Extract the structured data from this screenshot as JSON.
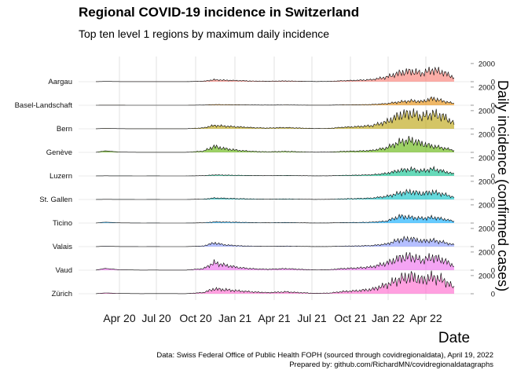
{
  "chart_data": {
    "type": "area",
    "title": "Regional COVID-19 incidence in Switzerland",
    "subtitle": "Top ten level 1 regions by maximum daily incidence",
    "xlabel": "Date",
    "ylabel": "Daily incidence (confirmed cases)",
    "x_ticks": [
      "Apr 20",
      "Jul 20",
      "Oct 20",
      "Jan 21",
      "Apr 21",
      "Jul 21",
      "Oct 21",
      "Jan 22",
      "Apr 22"
    ],
    "x_range": [
      "2020-02-25",
      "2022-04-19"
    ],
    "y_ticks": [
      0,
      2000
    ],
    "y_max_per_panel": 2600,
    "grid": true,
    "legend": "none",
    "series": [
      {
        "name": "Aargau",
        "color": "#F8766D",
        "values": [
          [
            0,
            5
          ],
          [
            0.026,
            30
          ],
          [
            0.068,
            12
          ],
          [
            0.13,
            5
          ],
          [
            0.15,
            10
          ],
          [
            0.19,
            8
          ],
          [
            0.25,
            6
          ],
          [
            0.3,
            80
          ],
          [
            0.33,
            310
          ],
          [
            0.36,
            240
          ],
          [
            0.4,
            170
          ],
          [
            0.44,
            100
          ],
          [
            0.48,
            70
          ],
          [
            0.53,
            120
          ],
          [
            0.57,
            70
          ],
          [
            0.61,
            30
          ],
          [
            0.65,
            40
          ],
          [
            0.69,
            160
          ],
          [
            0.73,
            220
          ],
          [
            0.77,
            330
          ],
          [
            0.81,
            720
          ],
          [
            0.85,
            1450
          ],
          [
            0.88,
            1700
          ],
          [
            0.91,
            1350
          ],
          [
            0.94,
            1900
          ],
          [
            0.97,
            1500
          ],
          [
            1.0,
            650
          ]
        ]
      },
      {
        "name": "Basel-Landschaft",
        "color": "#E58700",
        "values": [
          [
            0,
            2
          ],
          [
            0.026,
            10
          ],
          [
            0.068,
            5
          ],
          [
            0.13,
            2
          ],
          [
            0.15,
            3
          ],
          [
            0.19,
            3
          ],
          [
            0.25,
            2
          ],
          [
            0.3,
            30
          ],
          [
            0.33,
            110
          ],
          [
            0.36,
            90
          ],
          [
            0.4,
            65
          ],
          [
            0.44,
            40
          ],
          [
            0.48,
            25
          ],
          [
            0.53,
            45
          ],
          [
            0.57,
            25
          ],
          [
            0.61,
            12
          ],
          [
            0.65,
            15
          ],
          [
            0.69,
            60
          ],
          [
            0.73,
            80
          ],
          [
            0.77,
            120
          ],
          [
            0.81,
            250
          ],
          [
            0.85,
            550
          ],
          [
            0.88,
            700
          ],
          [
            0.91,
            600
          ],
          [
            0.94,
            1100
          ],
          [
            0.97,
            650
          ],
          [
            1.0,
            280
          ]
        ]
      },
      {
        "name": "Bern",
        "color": "#B79F00",
        "values": [
          [
            0,
            6
          ],
          [
            0.026,
            40
          ],
          [
            0.068,
            15
          ],
          [
            0.13,
            6
          ],
          [
            0.15,
            12
          ],
          [
            0.19,
            10
          ],
          [
            0.25,
            8
          ],
          [
            0.3,
            150
          ],
          [
            0.33,
            540
          ],
          [
            0.36,
            420
          ],
          [
            0.4,
            300
          ],
          [
            0.44,
            180
          ],
          [
            0.48,
            120
          ],
          [
            0.53,
            200
          ],
          [
            0.57,
            120
          ],
          [
            0.61,
            50
          ],
          [
            0.65,
            70
          ],
          [
            0.69,
            250
          ],
          [
            0.73,
            350
          ],
          [
            0.77,
            500
          ],
          [
            0.81,
            1100
          ],
          [
            0.85,
            2250
          ],
          [
            0.88,
            2500
          ],
          [
            0.91,
            2000
          ],
          [
            0.94,
            2400
          ],
          [
            0.97,
            2000
          ],
          [
            1.0,
            900
          ]
        ]
      },
      {
        "name": "Genève",
        "color": "#5BB300",
        "values": [
          [
            0,
            8
          ],
          [
            0.026,
            170
          ],
          [
            0.068,
            30
          ],
          [
            0.13,
            5
          ],
          [
            0.15,
            10
          ],
          [
            0.19,
            8
          ],
          [
            0.25,
            6
          ],
          [
            0.3,
            200
          ],
          [
            0.33,
            950
          ],
          [
            0.36,
            600
          ],
          [
            0.4,
            300
          ],
          [
            0.44,
            150
          ],
          [
            0.48,
            90
          ],
          [
            0.53,
            160
          ],
          [
            0.57,
            90
          ],
          [
            0.61,
            30
          ],
          [
            0.65,
            40
          ],
          [
            0.69,
            150
          ],
          [
            0.73,
            200
          ],
          [
            0.77,
            300
          ],
          [
            0.81,
            700
          ],
          [
            0.85,
            1700
          ],
          [
            0.88,
            1950
          ],
          [
            0.91,
            1400
          ],
          [
            0.94,
            1000
          ],
          [
            0.97,
            700
          ],
          [
            1.0,
            300
          ]
        ]
      },
      {
        "name": "Luzern",
        "color": "#00C08B",
        "values": [
          [
            0,
            3
          ],
          [
            0.026,
            15
          ],
          [
            0.068,
            6
          ],
          [
            0.13,
            3
          ],
          [
            0.15,
            5
          ],
          [
            0.19,
            4
          ],
          [
            0.25,
            3
          ],
          [
            0.3,
            40
          ],
          [
            0.33,
            160
          ],
          [
            0.36,
            130
          ],
          [
            0.4,
            95
          ],
          [
            0.44,
            60
          ],
          [
            0.48,
            40
          ],
          [
            0.53,
            70
          ],
          [
            0.57,
            40
          ],
          [
            0.61,
            15
          ],
          [
            0.65,
            22
          ],
          [
            0.69,
            90
          ],
          [
            0.73,
            120
          ],
          [
            0.77,
            180
          ],
          [
            0.81,
            400
          ],
          [
            0.85,
            900
          ],
          [
            0.88,
            1050
          ],
          [
            0.91,
            800
          ],
          [
            0.94,
            1100
          ],
          [
            0.97,
            750
          ],
          [
            1.0,
            330
          ]
        ]
      },
      {
        "name": "St. Gallen",
        "color": "#00BFC4",
        "values": [
          [
            0,
            3
          ],
          [
            0.026,
            18
          ],
          [
            0.068,
            7
          ],
          [
            0.13,
            3
          ],
          [
            0.15,
            5
          ],
          [
            0.19,
            4
          ],
          [
            0.25,
            3
          ],
          [
            0.3,
            60
          ],
          [
            0.33,
            230
          ],
          [
            0.36,
            190
          ],
          [
            0.4,
            130
          ],
          [
            0.44,
            80
          ],
          [
            0.48,
            50
          ],
          [
            0.53,
            90
          ],
          [
            0.57,
            50
          ],
          [
            0.61,
            20
          ],
          [
            0.65,
            28
          ],
          [
            0.69,
            110
          ],
          [
            0.73,
            150
          ],
          [
            0.77,
            220
          ],
          [
            0.81,
            480
          ],
          [
            0.85,
            1050
          ],
          [
            0.88,
            1250
          ],
          [
            0.91,
            950
          ],
          [
            0.94,
            1200
          ],
          [
            0.97,
            850
          ],
          [
            1.0,
            380
          ]
        ]
      },
      {
        "name": "Ticino",
        "color": "#00A9FF",
        "values": [
          [
            0,
            4
          ],
          [
            0.026,
            100
          ],
          [
            0.068,
            20
          ],
          [
            0.13,
            3
          ],
          [
            0.15,
            5
          ],
          [
            0.19,
            4
          ],
          [
            0.25,
            3
          ],
          [
            0.3,
            45
          ],
          [
            0.33,
            180
          ],
          [
            0.36,
            160
          ],
          [
            0.4,
            120
          ],
          [
            0.44,
            70
          ],
          [
            0.48,
            45
          ],
          [
            0.53,
            80
          ],
          [
            0.57,
            45
          ],
          [
            0.61,
            15
          ],
          [
            0.65,
            20
          ],
          [
            0.69,
            70
          ],
          [
            0.73,
            90
          ],
          [
            0.77,
            140
          ],
          [
            0.81,
            300
          ],
          [
            0.85,
            1100
          ],
          [
            0.88,
            900
          ],
          [
            0.91,
            750
          ],
          [
            0.94,
            900
          ],
          [
            0.97,
            650
          ],
          [
            1.0,
            280
          ]
        ]
      },
      {
        "name": "Valais",
        "color": "#8494FF",
        "values": [
          [
            0,
            3
          ],
          [
            0.026,
            40
          ],
          [
            0.068,
            10
          ],
          [
            0.13,
            3
          ],
          [
            0.15,
            5
          ],
          [
            0.19,
            4
          ],
          [
            0.25,
            3
          ],
          [
            0.3,
            100
          ],
          [
            0.33,
            600
          ],
          [
            0.36,
            280
          ],
          [
            0.4,
            130
          ],
          [
            0.44,
            70
          ],
          [
            0.48,
            45
          ],
          [
            0.53,
            80
          ],
          [
            0.57,
            45
          ],
          [
            0.61,
            15
          ],
          [
            0.65,
            20
          ],
          [
            0.69,
            80
          ],
          [
            0.73,
            110
          ],
          [
            0.77,
            170
          ],
          [
            0.81,
            400
          ],
          [
            0.85,
            1150
          ],
          [
            0.88,
            1250
          ],
          [
            0.91,
            900
          ],
          [
            0.94,
            1000
          ],
          [
            0.97,
            700
          ],
          [
            1.0,
            300
          ]
        ]
      },
      {
        "name": "Vaud",
        "color": "#ED68ED",
        "values": [
          [
            0,
            8
          ],
          [
            0.026,
            200
          ],
          [
            0.068,
            40
          ],
          [
            0.13,
            8
          ],
          [
            0.15,
            15
          ],
          [
            0.19,
            12
          ],
          [
            0.25,
            10
          ],
          [
            0.3,
            250
          ],
          [
            0.33,
            1200
          ],
          [
            0.36,
            800
          ],
          [
            0.4,
            400
          ],
          [
            0.44,
            220
          ],
          [
            0.48,
            140
          ],
          [
            0.53,
            250
          ],
          [
            0.57,
            140
          ],
          [
            0.61,
            50
          ],
          [
            0.65,
            70
          ],
          [
            0.69,
            260
          ],
          [
            0.73,
            350
          ],
          [
            0.77,
            520
          ],
          [
            0.81,
            1100
          ],
          [
            0.85,
            2000
          ],
          [
            0.88,
            2200
          ],
          [
            0.91,
            1600
          ],
          [
            0.94,
            2100
          ],
          [
            0.97,
            1600
          ],
          [
            1.0,
            700
          ]
        ]
      },
      {
        "name": "Zürich",
        "color": "#FF61CC",
        "values": [
          [
            0,
            10
          ],
          [
            0.026,
            90
          ],
          [
            0.068,
            30
          ],
          [
            0.13,
            10
          ],
          [
            0.15,
            20
          ],
          [
            0.19,
            15
          ],
          [
            0.25,
            12
          ],
          [
            0.3,
            200
          ],
          [
            0.33,
            780
          ],
          [
            0.36,
            650
          ],
          [
            0.4,
            450
          ],
          [
            0.44,
            280
          ],
          [
            0.48,
            180
          ],
          [
            0.53,
            300
          ],
          [
            0.57,
            180
          ],
          [
            0.61,
            70
          ],
          [
            0.65,
            100
          ],
          [
            0.69,
            350
          ],
          [
            0.73,
            480
          ],
          [
            0.77,
            700
          ],
          [
            0.81,
            1400
          ],
          [
            0.85,
            2400
          ],
          [
            0.88,
            2800
          ],
          [
            0.91,
            2200
          ],
          [
            0.94,
            2700
          ],
          [
            0.97,
            2200
          ],
          [
            1.0,
            1000
          ]
        ]
      }
    ]
  },
  "caption": {
    "line1": "Data: Swiss Federal Office of Public Health FOPH (sourced through covidregionaldata), April 19, 2022",
    "line2": "Prepared by: github.com/RichardMN/covidregionaldatagraphs"
  }
}
